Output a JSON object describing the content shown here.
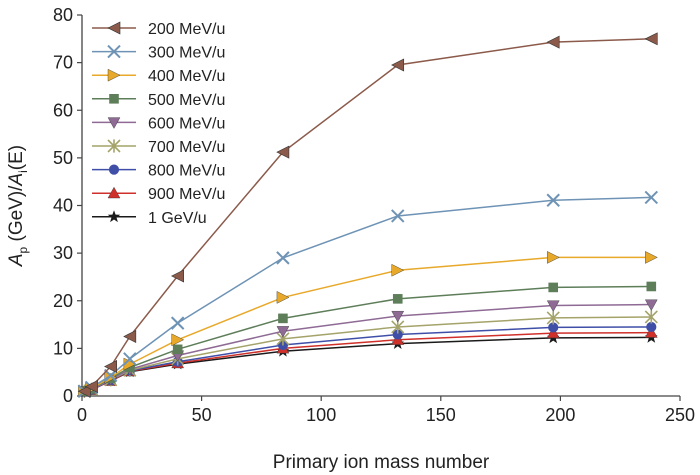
{
  "chart_data": {
    "type": "line",
    "title": "",
    "xlabel": "Primary ion mass number",
    "ylabel": {
      "parts": [
        {
          "text": "A",
          "style": "italic"
        },
        {
          "text": "p",
          "style": "sub"
        },
        {
          "text": " (GeV)/",
          "style": "normal"
        },
        {
          "text": "A",
          "style": "italic"
        },
        {
          "text": "i",
          "style": "sub"
        },
        {
          "text": "(E)",
          "style": "normal"
        }
      ]
    },
    "xlim": [
      0,
      250
    ],
    "ylim": [
      0,
      80
    ],
    "xticks": [
      0,
      50,
      100,
      150,
      200,
      250
    ],
    "yticks": [
      0,
      10,
      20,
      30,
      40,
      50,
      60,
      70,
      80
    ],
    "grid": false,
    "legend_position": "top-left",
    "x": [
      1,
      4,
      12,
      20,
      40,
      84,
      132,
      197,
      238
    ],
    "series": [
      {
        "name": "200 MeV/u",
        "color": "#8B5A4A",
        "marker": "triangle-left",
        "values": [
          1,
          2,
          6.2,
          12.5,
          25.2,
          51.2,
          69.5,
          74.3,
          75
        ]
      },
      {
        "name": "300 MeV/u",
        "color": "#6E93B5",
        "marker": "x",
        "values": [
          1,
          1.8,
          4.3,
          7.8,
          15.3,
          29,
          37.8,
          41.1,
          41.7
        ]
      },
      {
        "name": "400 MeV/u",
        "color": "#E8A92A",
        "marker": "triangle-right",
        "values": [
          1,
          1.6,
          3.9,
          6.7,
          11.8,
          20.7,
          26.4,
          29.1,
          29.1
        ]
      },
      {
        "name": "500 MeV/u",
        "color": "#5E7E5A",
        "marker": "square",
        "values": [
          1,
          1.5,
          3.7,
          6,
          9.8,
          16.3,
          20.4,
          22.8,
          23
        ]
      },
      {
        "name": "600 MeV/u",
        "color": "#8E6A95",
        "marker": "triangle-down",
        "values": [
          1,
          1.4,
          3.5,
          5.6,
          8.5,
          13.6,
          16.8,
          19,
          19.2
        ]
      },
      {
        "name": "700 MeV/u",
        "color": "#A4A36A",
        "marker": "asterisk",
        "values": [
          1,
          1.4,
          3.4,
          5.4,
          7.8,
          12,
          14.5,
          16.4,
          16.6
        ]
      },
      {
        "name": "800 MeV/u",
        "color": "#3F4FA8",
        "marker": "circle",
        "values": [
          1,
          1.3,
          3.3,
          5.3,
          7.2,
          10.7,
          12.9,
          14.4,
          14.5
        ]
      },
      {
        "name": "900 MeV/u",
        "color": "#D0302A",
        "marker": "triangle-up",
        "values": [
          1,
          1.3,
          3.2,
          5.2,
          6.9,
          10,
          11.8,
          13.2,
          13.3
        ]
      },
      {
        "name": "1 GeV/u",
        "color": "#1A1A1A",
        "marker": "star",
        "values": [
          1,
          1.3,
          3.2,
          5.1,
          6.7,
          9.4,
          11,
          12.2,
          12.3
        ]
      }
    ]
  }
}
